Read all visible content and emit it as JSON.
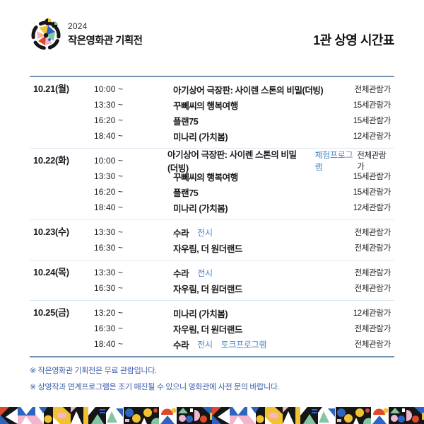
{
  "header": {
    "logo": {
      "year": "2024",
      "name": "작은영화관 기획전"
    },
    "title": "1관 상영 시간표"
  },
  "schedule": {
    "sections": [
      {
        "date": "10.21(월)",
        "rows": [
          {
            "time": "10:00 ~",
            "title": "아기상어 극장판: 사이렌 스톤의 비밀(더빙)",
            "tags": [],
            "rating": "전체관람가"
          },
          {
            "time": "13:30 ~",
            "title": "꾸뻬씨의 행복여행",
            "tags": [],
            "rating": "15세관람가"
          },
          {
            "time": "16:20 ~",
            "title": "플랜75",
            "tags": [],
            "rating": "15세관람가"
          },
          {
            "time": "18:40 ~",
            "title": "미나리 (가치봄)",
            "tags": [],
            "rating": "12세관람가"
          }
        ]
      },
      {
        "date": "10.22(화)",
        "rows": [
          {
            "time": "10:00 ~",
            "title": "아기상어 극장판: 사이렌 스톤의 비밀(더빙)",
            "tags": [
              "체험프로그램"
            ],
            "rating": "전체관람가"
          },
          {
            "time": "13:30 ~",
            "title": "꾸뻬씨의 행복여행",
            "tags": [],
            "rating": "15세관람가"
          },
          {
            "time": "16:20 ~",
            "title": "플랜75",
            "tags": [],
            "rating": "15세관람가"
          },
          {
            "time": "18:40 ~",
            "title": "미나리 (가치봄)",
            "tags": [],
            "rating": "12세관람가"
          }
        ]
      },
      {
        "date": "10.23(수)",
        "rows": [
          {
            "time": "13:30 ~",
            "title": "수라",
            "tags": [
              "전시"
            ],
            "rating": "전체관람가"
          },
          {
            "time": "16:30 ~",
            "title": "자우림, 더 원더랜드",
            "tags": [],
            "rating": "전체관람가"
          }
        ]
      },
      {
        "date": "10.24(목)",
        "rows": [
          {
            "time": "13:30 ~",
            "title": "수라",
            "tags": [
              "전시"
            ],
            "rating": "전체관람가"
          },
          {
            "time": "16:30 ~",
            "title": "자우림, 더 원더랜드",
            "tags": [],
            "rating": "전체관람가"
          }
        ]
      },
      {
        "date": "10.25(금)",
        "rows": [
          {
            "time": "13:20 ~",
            "title": "미나리 (가치봄)",
            "tags": [],
            "rating": "12세관람가"
          },
          {
            "time": "16:30 ~",
            "title": "자우림, 더 원더랜드",
            "tags": [],
            "rating": "전체관람가"
          },
          {
            "time": "18:40 ~",
            "title": "수라",
            "tags": [
              "전시",
              "토크프로그램"
            ],
            "rating": "전체관람가"
          }
        ]
      }
    ]
  },
  "footnotes": [
    "※ 작은영화관 기획전은 무료 관람입니다.",
    "※ 상영작과 연계프로그램은 조기 매진될 수 있으니 영화관에 사전 문의 바랍니다."
  ],
  "colors": {
    "accent_line": "#6f94b4",
    "row_separator": "#dfe9f2",
    "tag_blue": "#4a87c9",
    "note_blue": "#3a5ca8",
    "ink": "#1b1b1b",
    "p_black": "#161616",
    "p_blue": "#2d64bf",
    "p_yellow": "#f2c232",
    "p_red": "#dd4a2b",
    "p_pink": "#f3b5cd",
    "p_green": "#84c6a3",
    "p_white": "#ffffff"
  }
}
